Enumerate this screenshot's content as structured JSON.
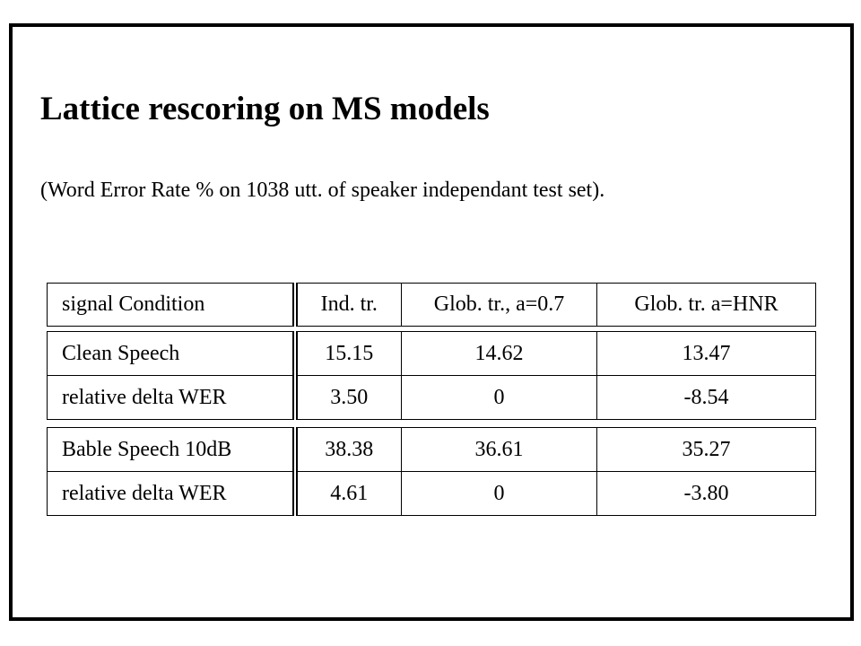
{
  "header": {
    "title": "Lattice rescoring on MS models",
    "subtitle": "(Word Error Rate % on 1038 utt. of speaker independant test set)."
  },
  "table": {
    "columns": [
      "signal Condition",
      "Ind. tr.",
      "Glob. tr., a=0.7",
      "Glob. tr. a=HNR"
    ],
    "groups": [
      [
        [
          "Clean Speech",
          "15.15",
          "14.62",
          "13.47"
        ],
        [
          "relative delta WER",
          "3.50",
          "0",
          "-8.54"
        ]
      ],
      [
        [
          "Bable Speech 10dB",
          "38.38",
          "36.61",
          "35.27"
        ],
        [
          "relative delta WER",
          "4.61",
          "0",
          "-3.80"
        ]
      ]
    ]
  }
}
